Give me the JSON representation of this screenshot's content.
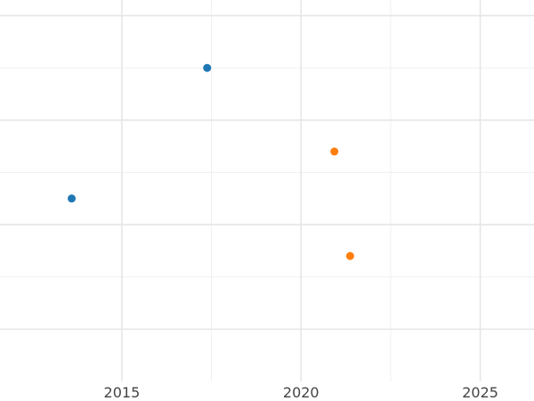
{
  "chart_data": {
    "type": "scatter",
    "title": "",
    "xlabel": "",
    "ylabel": "",
    "xlim": [
      2011.6,
      2026.5
    ],
    "ylim": [
      0,
      7.3
    ],
    "grid": true,
    "x_ticks": [
      2015,
      2020,
      2025
    ],
    "x_tick_labels": [
      "2015",
      "2020",
      "2025"
    ],
    "x_minor_ticks": [
      2017.5,
      2022.5
    ],
    "y_ticks": [
      1,
      3,
      5,
      7
    ],
    "y_minor_ticks": [
      2,
      4,
      6
    ],
    "series": [
      {
        "color": "#1f77b4",
        "points": [
          {
            "x": 2013.6,
            "y": 3.5
          },
          {
            "x": 2017.38,
            "y": 6.0
          }
        ]
      },
      {
        "color": "#ff7f0e",
        "points": [
          {
            "x": 2020.93,
            "y": 4.4
          },
          {
            "x": 2021.37,
            "y": 2.4
          }
        ]
      }
    ]
  }
}
